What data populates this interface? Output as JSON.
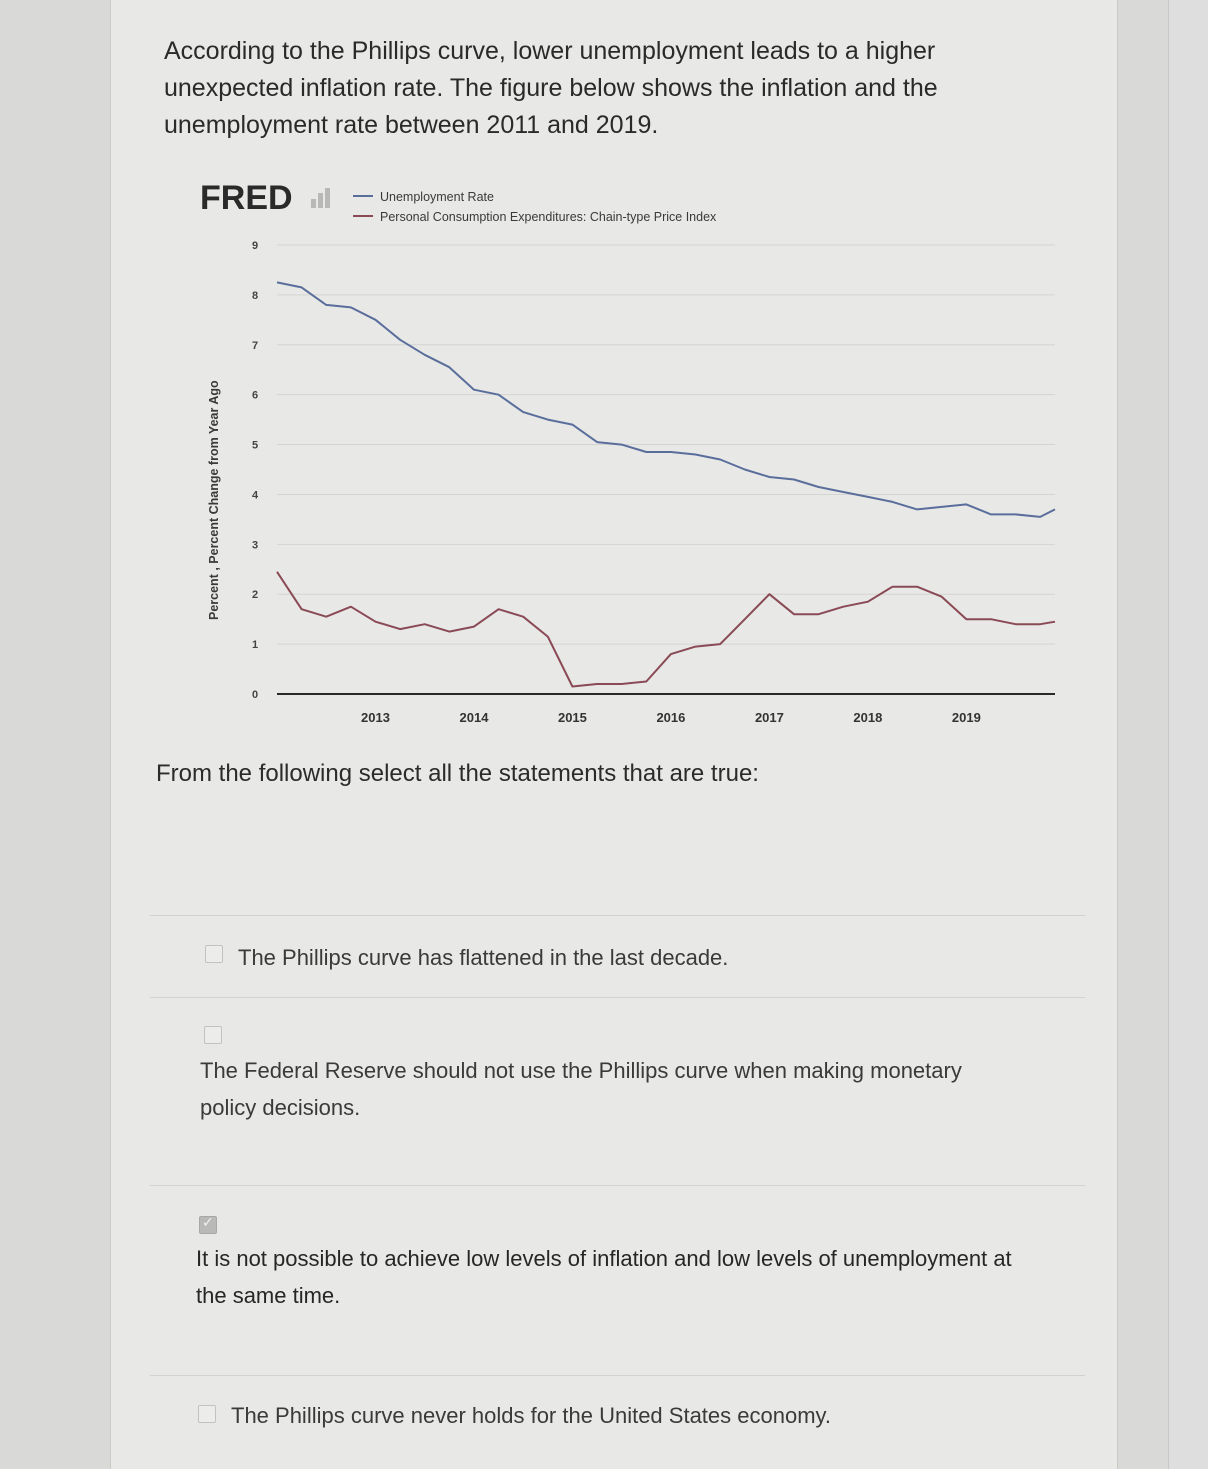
{
  "question": {
    "intro": "According to the Phillips curve, lower unemployment leads to a higher unexpected inflation rate. The figure below shows the inflation and the unemployment rate between 2011 and 2019.",
    "prompt": "From the following select all the statements that are true:"
  },
  "chart_header": {
    "logo": "FRED",
    "legend_items": [
      "Unemployment Rate",
      "Personal Consumption Expenditures: Chain-type Price Index"
    ]
  },
  "chart_data": {
    "type": "line",
    "title": "",
    "xlabel": "",
    "ylabel": "Percent , Percent Change from Year Ago",
    "xlim": [
      2012.0,
      2019.9
    ],
    "ylim": [
      0,
      9
    ],
    "yticks": [
      0,
      1,
      2,
      3,
      4,
      5,
      6,
      7,
      8,
      9
    ],
    "xticks": [
      "2013",
      "2014",
      "2015",
      "2016",
      "2017",
      "2018",
      "2019"
    ],
    "grid": true,
    "legend_position": "top",
    "series": [
      {
        "name": "Unemployment Rate",
        "color": "#5a6e9c",
        "x": [
          2012.0,
          2012.25,
          2012.5,
          2012.75,
          2013.0,
          2013.25,
          2013.5,
          2013.75,
          2014.0,
          2014.25,
          2014.5,
          2014.75,
          2015.0,
          2015.25,
          2015.5,
          2015.75,
          2016.0,
          2016.25,
          2016.5,
          2016.75,
          2017.0,
          2017.25,
          2017.5,
          2017.75,
          2018.0,
          2018.25,
          2018.5,
          2018.75,
          2019.0,
          2019.25,
          2019.5,
          2019.75,
          2019.9
        ],
        "values": [
          8.25,
          8.15,
          7.8,
          7.75,
          7.5,
          7.1,
          6.8,
          6.55,
          6.1,
          6.0,
          5.65,
          5.5,
          5.4,
          5.05,
          5.0,
          4.85,
          4.85,
          4.8,
          4.7,
          4.5,
          4.35,
          4.3,
          4.15,
          4.05,
          3.95,
          3.85,
          3.7,
          3.75,
          3.8,
          3.6,
          3.6,
          3.55,
          3.7
        ]
      },
      {
        "name": "Personal Consumption Expenditures: Chain-type Price Index",
        "color": "#8a4a55",
        "x": [
          2012.0,
          2012.25,
          2012.5,
          2012.75,
          2013.0,
          2013.25,
          2013.5,
          2013.75,
          2014.0,
          2014.25,
          2014.5,
          2014.75,
          2015.0,
          2015.25,
          2015.5,
          2015.75,
          2016.0,
          2016.25,
          2016.5,
          2016.75,
          2017.0,
          2017.25,
          2017.5,
          2017.75,
          2018.0,
          2018.25,
          2018.5,
          2018.75,
          2019.0,
          2019.25,
          2019.5,
          2019.75,
          2019.9
        ],
        "values": [
          2.45,
          1.7,
          1.55,
          1.75,
          1.45,
          1.3,
          1.4,
          1.25,
          1.35,
          1.7,
          1.55,
          1.15,
          0.15,
          0.2,
          0.2,
          0.25,
          0.8,
          0.95,
          1.0,
          1.5,
          2.0,
          1.6,
          1.6,
          1.75,
          1.85,
          2.15,
          2.15,
          1.95,
          1.5,
          1.5,
          1.4,
          1.4,
          1.45
        ]
      }
    ]
  },
  "options": [
    {
      "label": "The Phillips curve has flattened in the last decade.",
      "checked": false
    },
    {
      "label": "The Federal Reserve should not use the Phillips curve when making monetary policy decisions.",
      "checked": false
    },
    {
      "label": "It is not possible to achieve low levels of inflation and low levels of unemployment at the same time.",
      "checked": true
    },
    {
      "label": "The Phillips curve never holds for the United States economy.",
      "checked": false
    }
  ]
}
